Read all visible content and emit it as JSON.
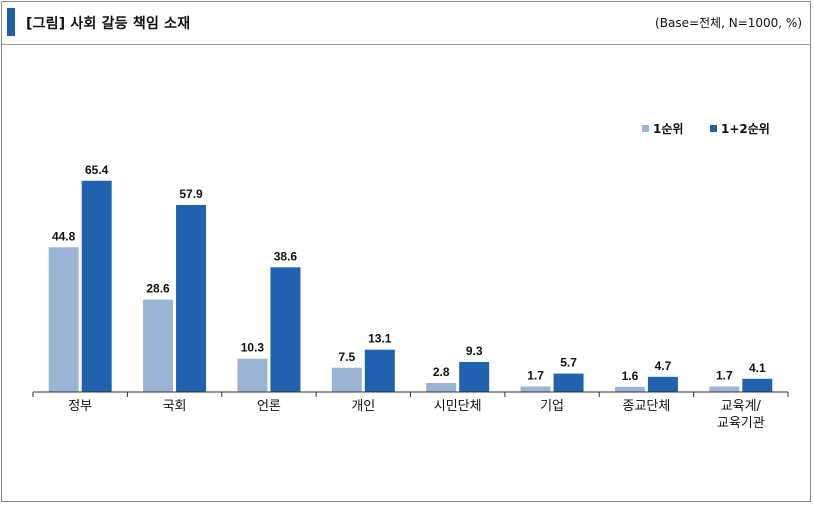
{
  "header": {
    "title": "[그림] 사회 갈등 책임 소재",
    "base_note": "(Base=전체, N=1000, %)"
  },
  "colors": {
    "accent": "#1f5fa8",
    "series1": "#9bb4d6",
    "series2": "#2062b0",
    "axis": "#333333"
  },
  "chart_data": {
    "type": "bar",
    "title": "[그림] 사회 갈등 책임 소재",
    "legend_position": "top-right",
    "grid": false,
    "ylim": [
      0,
      70
    ],
    "categories": [
      [
        "정부"
      ],
      [
        "국회"
      ],
      [
        "언론"
      ],
      [
        "개인"
      ],
      [
        "시민단체"
      ],
      [
        "기업"
      ],
      [
        "종교단체"
      ],
      [
        "교육계/",
        "교육기관"
      ]
    ],
    "series": [
      {
        "name": "1순위",
        "values": [
          44.8,
          28.6,
          10.3,
          7.5,
          2.8,
          1.7,
          1.6,
          1.7
        ]
      },
      {
        "name": "1+2순위",
        "values": [
          65.4,
          57.9,
          38.6,
          13.1,
          9.3,
          5.7,
          4.7,
          4.1
        ]
      }
    ]
  }
}
